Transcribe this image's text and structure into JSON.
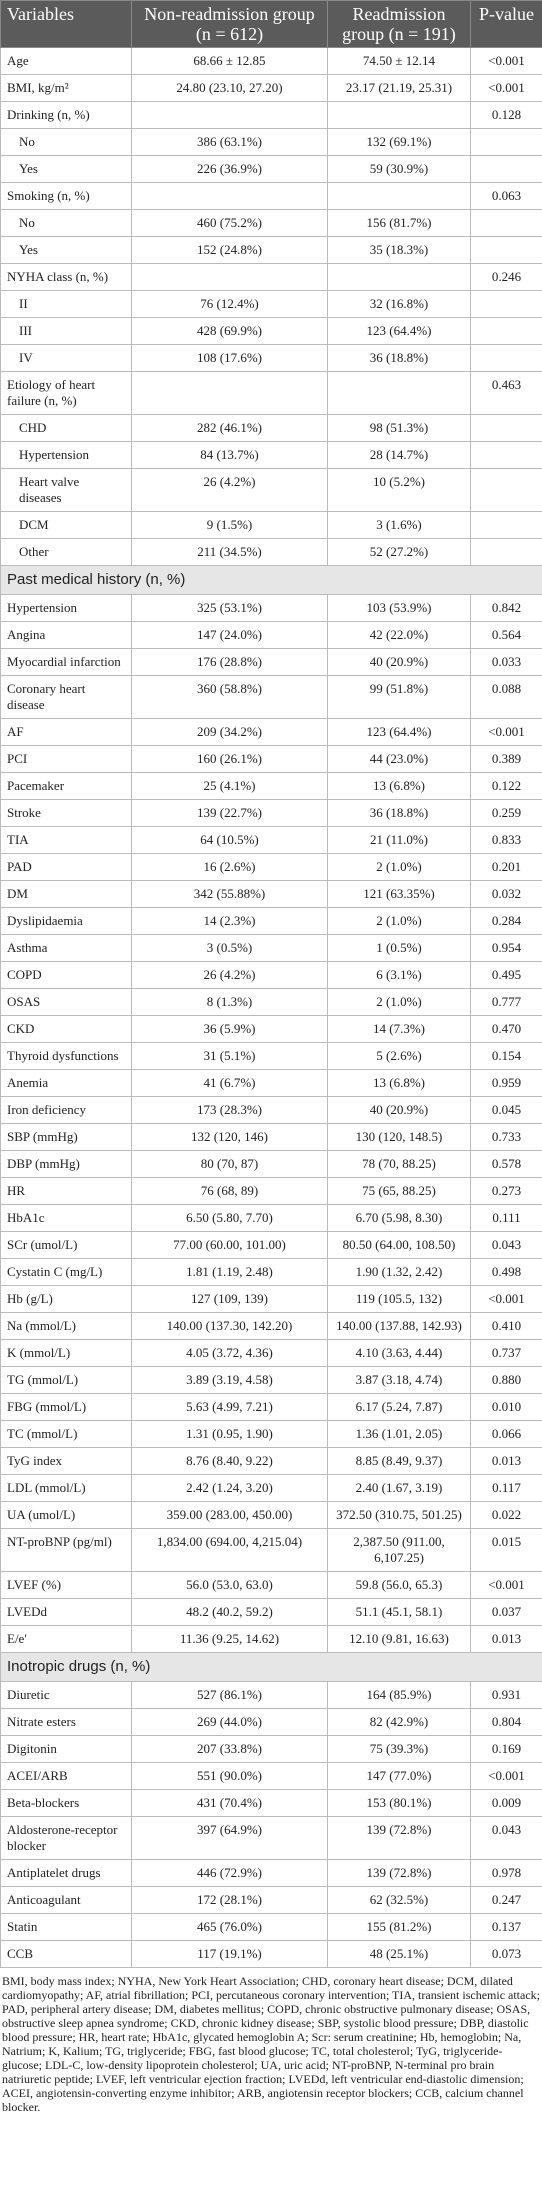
{
  "table": {
    "header": [
      "Variables",
      "Non-readmission group (n = 612)",
      "Readmission group (n = 191)",
      "P-value"
    ],
    "sections": [
      {
        "rows": [
          [
            "Age",
            "68.66 ± 12.85",
            "74.50 ± 12.14",
            "<0.001"
          ],
          [
            "BMI, kg/m²",
            "24.80 (23.10, 27.20)",
            "23.17 (21.19, 25.31)",
            "<0.001"
          ],
          {
            "label": "Drinking (n, %)",
            "p": "0.128",
            "levels": [
              [
                "No",
                "386 (63.1%)",
                "132 (69.1%)"
              ],
              [
                "Yes",
                "226 (36.9%)",
                "59 (30.9%)"
              ]
            ]
          },
          {
            "label": "Smoking (n, %)",
            "p": "0.063",
            "levels": [
              [
                "No",
                "460 (75.2%)",
                "156 (81.7%)"
              ],
              [
                "Yes",
                "152 (24.8%)",
                "35 (18.3%)"
              ]
            ]
          },
          {
            "label": "NYHA class (n, %)",
            "p": "0.246",
            "levels": [
              [
                "II",
                "76 (12.4%)",
                "32 (16.8%)"
              ],
              [
                "III",
                "428 (69.9%)",
                "123 (64.4%)"
              ],
              [
                "IV",
                "108 (17.6%)",
                "36 (18.8%)"
              ]
            ]
          },
          {
            "label": "Etiology of heart failure (n, %)",
            "p": "0.463",
            "levels": [
              [
                "CHD",
                "282 (46.1%)",
                "98 (51.3%)"
              ],
              [
                "Hypertension",
                "84 (13.7%)",
                "28 (14.7%)"
              ],
              [
                "Heart valve diseases",
                "26 (4.2%)",
                "10 (5.2%)"
              ],
              [
                "DCM",
                "9 (1.5%)",
                "3 (1.6%)"
              ],
              [
                "Other",
                "211 (34.5%)",
                "52 (27.2%)"
              ]
            ]
          }
        ]
      },
      {
        "title": "Past medical history (n, %)",
        "rows": [
          [
            "Hypertension",
            "325 (53.1%)",
            "103 (53.9%)",
            "0.842"
          ],
          [
            "Angina",
            "147 (24.0%)",
            "42 (22.0%)",
            "0.564"
          ],
          [
            "Myocardial infarction",
            "176 (28.8%)",
            "40 (20.9%)",
            "0.033"
          ],
          [
            "Coronary heart disease",
            "360 (58.8%)",
            "99 (51.8%)",
            "0.088"
          ],
          [
            "AF",
            "209 (34.2%)",
            "123 (64.4%)",
            "<0.001"
          ],
          [
            "PCI",
            "160 (26.1%)",
            "44 (23.0%)",
            "0.389"
          ],
          [
            "Pacemaker",
            "25 (4.1%)",
            "13 (6.8%)",
            "0.122"
          ],
          [
            "Stroke",
            "139 (22.7%)",
            "36 (18.8%)",
            "0.259"
          ],
          [
            "TIA",
            "64 (10.5%)",
            "21 (11.0%)",
            "0.833"
          ],
          [
            "PAD",
            "16 (2.6%)",
            "2 (1.0%)",
            "0.201"
          ],
          [
            "DM",
            "342 (55.88%)",
            "121 (63.35%)",
            "0.032"
          ],
          [
            "Dyslipidaemia",
            "14 (2.3%)",
            "2 (1.0%)",
            "0.284"
          ],
          [
            "Asthma",
            "3 (0.5%)",
            "1 (0.5%)",
            "0.954"
          ],
          [
            "COPD",
            "26 (4.2%)",
            "6 (3.1%)",
            "0.495"
          ],
          [
            "OSAS",
            "8 (1.3%)",
            "2 (1.0%)",
            "0.777"
          ],
          [
            "CKD",
            "36 (5.9%)",
            "14 (7.3%)",
            "0.470"
          ],
          [
            "Thyroid dysfunctions",
            "31 (5.1%)",
            "5 (2.6%)",
            "0.154"
          ],
          [
            "Anemia",
            "41 (6.7%)",
            "13 (6.8%)",
            "0.959"
          ],
          [
            "Iron deficiency",
            "173 (28.3%)",
            "40 (20.9%)",
            "0.045"
          ],
          [
            "SBP (mmHg)",
            "132 (120, 146)",
            "130 (120, 148.5)",
            "0.733"
          ],
          [
            "DBP (mmHg)",
            "80 (70, 87)",
            "78 (70, 88.25)",
            "0.578"
          ],
          [
            "HR",
            "76 (68, 89)",
            "75 (65, 88.25)",
            "0.273"
          ],
          [
            "HbA1c",
            "6.50 (5.80, 7.70)",
            "6.70 (5.98, 8.30)",
            "0.111"
          ],
          [
            "SCr (umol/L)",
            "77.00 (60.00, 101.00)",
            "80.50 (64.00, 108.50)",
            "0.043"
          ],
          [
            "Cystatin C (mg/L)",
            "1.81 (1.19, 2.48)",
            "1.90 (1.32, 2.42)",
            "0.498"
          ],
          [
            "Hb (g/L)",
            "127 (109, 139)",
            "119 (105.5, 132)",
            "<0.001"
          ],
          [
            "Na (mmol/L)",
            "140.00 (137.30, 142.20)",
            "140.00 (137.88, 142.93)",
            "0.410"
          ],
          [
            "K (mmol/L)",
            "4.05 (3.72, 4.36)",
            "4.10 (3.63, 4.44)",
            "0.737"
          ],
          [
            "TG (mmol/L)",
            "3.89 (3.19, 4.58)",
            "3.87 (3.18, 4.74)",
            "0.880"
          ],
          [
            "FBG (mmol/L)",
            "5.63 (4.99, 7.21)",
            "6.17 (5.24, 7.87)",
            "0.010"
          ],
          [
            "TC (mmol/L)",
            "1.31 (0.95, 1.90)",
            "1.36 (1.01, 2.05)",
            "0.066"
          ],
          [
            "TyG index",
            "8.76 (8.40, 9.22)",
            "8.85 (8.49, 9.37)",
            "0.013"
          ],
          [
            "LDL (mmol/L)",
            "2.42 (1.24, 3.20)",
            "2.40 (1.67, 3.19)",
            "0.117"
          ],
          [
            "UA (umol/L)",
            "359.00 (283.00, 450.00)",
            "372.50 (310.75, 501.25)",
            "0.022"
          ],
          [
            "NT-proBNP (pg/ml)",
            "1,834.00 (694.00, 4,215.04)",
            "2,387.50 (911.00, 6,107.25)",
            "0.015"
          ],
          [
            "LVEF (%)",
            "56.0 (53.0, 63.0)",
            "59.8 (56.0, 65.3)",
            "<0.001"
          ],
          [
            "LVEDd",
            "48.2 (40.2, 59.2)",
            "51.1 (45.1, 58.1)",
            "0.037"
          ],
          [
            "E/e'",
            "11.36 (9.25, 14.62)",
            "12.10 (9.81, 16.63)",
            "0.013"
          ]
        ]
      },
      {
        "title": "Inotropic drugs (n, %)",
        "rows": [
          [
            "Diuretic",
            "527 (86.1%)",
            "164 (85.9%)",
            "0.931"
          ],
          [
            "Nitrate esters",
            "269 (44.0%)",
            "82 (42.9%)",
            "0.804"
          ],
          [
            "Digitonin",
            "207 (33.8%)",
            "75 (39.3%)",
            "0.169"
          ],
          [
            "ACEI/ARB",
            "551 (90.0%)",
            "147 (77.0%)",
            "<0.001"
          ],
          [
            "Beta-blockers",
            "431 (70.4%)",
            "153 (80.1%)",
            "0.009"
          ],
          [
            "Aldosterone-receptor blocker",
            "397 (64.9%)",
            "139 (72.8%)",
            "0.043"
          ],
          [
            "Antiplatelet drugs",
            "446 (72.9%)",
            "139 (72.8%)",
            "0.978"
          ],
          [
            "Anticoagulant",
            "172 (28.1%)",
            "62 (32.5%)",
            "0.247"
          ],
          [
            "Statin",
            "465 (76.0%)",
            "155 (81.2%)",
            "0.137"
          ],
          [
            "CCB",
            "117 (19.1%)",
            "48 (25.1%)",
            "0.073"
          ]
        ]
      }
    ]
  },
  "footnote": "BMI, body mass index; NYHA, New York Heart Association; CHD, coronary heart disease; DCM, dilated cardiomyopathy; AF, atrial fibrillation; PCI, percutaneous coronary intervention; TIA, transient ischemic attack; PAD, peripheral artery disease; DM, diabetes mellitus; COPD, chronic obstructive pulmonary disease; OSAS, obstructive sleep apnea syndrome; CKD, chronic kidney disease; SBP, systolic blood pressure; DBP, diastolic blood pressure; HR, heart rate; HbA1c, glycated hemoglobin A; Scr: serum creatinine; Hb, hemoglobin; Na, Natrium; K, Kalium; TG, triglyceride; FBG, fast blood glucose; TC, total cholesterol; TyG, triglyceride-glucose; LDL-C, low-density lipoprotein cholesterol; UA, uric acid; NT-proBNP, N-terminal pro brain natriuretic peptide; LVEF, left ventricular ejection fraction; LVEDd, left ventricular end-diastolic dimension; ACEI, angiotensin-converting enzyme inhibitor; ARB, angiotensin receptor blockers; CCB, calcium channel blocker."
}
